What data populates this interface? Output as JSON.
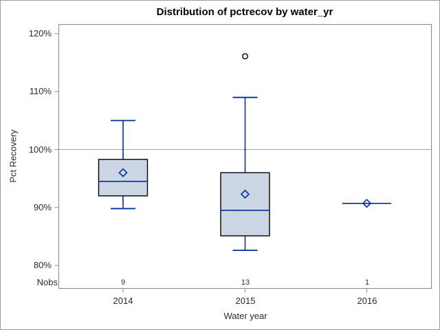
{
  "title": "Distribution of pctrecov by water_yr",
  "x_axis": {
    "label": "Water year",
    "tick_labels": [
      "2014",
      "2015",
      "2016"
    ]
  },
  "y_axis": {
    "label": "Pct Recovery",
    "tick_labels": [
      "120%",
      "110%",
      "100%",
      "90%",
      "80%"
    ]
  },
  "nobs_row": {
    "label": "Nobs",
    "values": [
      "9",
      "13",
      "1"
    ]
  },
  "colors": {
    "box_fill": "#ccd5e3",
    "box_stroke": "#000000",
    "line_blue": "#002f9d",
    "outlier_stroke": "#000000",
    "frame_gray": "#8a8a8a",
    "refline_gray": "#a3a3a3"
  },
  "chart_data": {
    "type": "box",
    "title": "Distribution of pctrecov by water_yr",
    "xlabel": "Water year",
    "ylabel": "Pct Recovery",
    "categories": [
      "2014",
      "2015",
      "2016"
    ],
    "yticks": [
      80,
      90,
      100,
      110,
      120
    ],
    "ytick_format": "percent",
    "ylim": [
      76,
      121.7
    ],
    "refline": 100,
    "grid": "refline-only",
    "legend": "none",
    "nobs": [
      9,
      13,
      1
    ],
    "series": [
      {
        "category": "2014",
        "n": 9,
        "whisker_low": 89.8,
        "q1": 92.0,
        "median": 94.5,
        "q3": 98.3,
        "whisker_high": 105.0,
        "mean": 96.0,
        "outliers": []
      },
      {
        "category": "2015",
        "n": 13,
        "whisker_low": 82.6,
        "q1": 85.1,
        "median": 89.5,
        "q3": 96.0,
        "whisker_high": 109.0,
        "mean": 92.3,
        "outliers": [
          116.1
        ]
      },
      {
        "category": "2016",
        "n": 1,
        "whisker_low": null,
        "q1": null,
        "median": 90.7,
        "q3": null,
        "whisker_high": null,
        "mean": 90.7,
        "outliers": []
      }
    ]
  }
}
